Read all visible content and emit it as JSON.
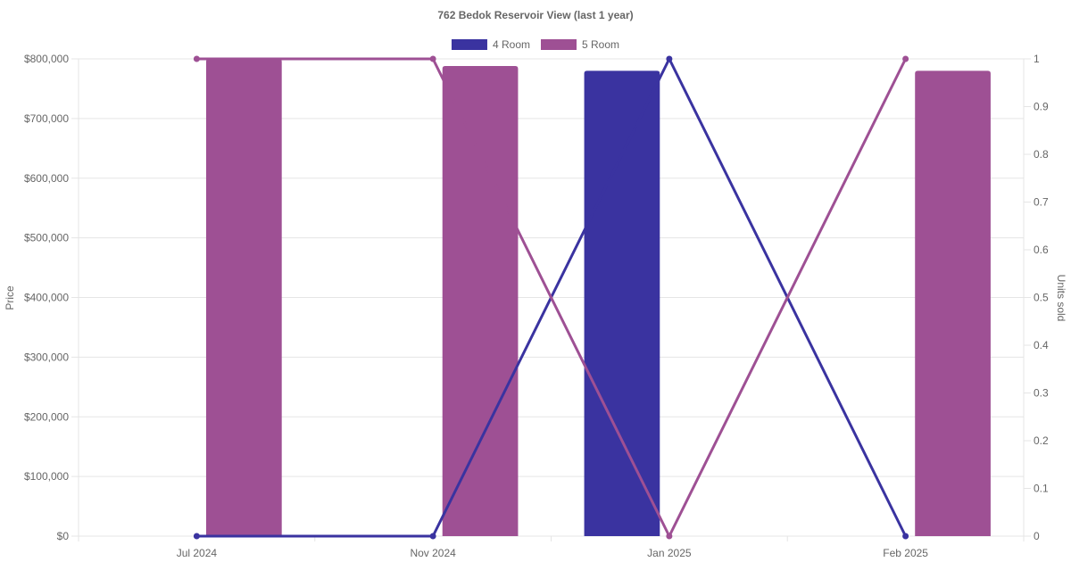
{
  "chart_data": {
    "type": "bar",
    "title": "762 Bedok Reservoir View (last 1 year)",
    "categories": [
      "Jul 2024",
      "Nov 2024",
      "Jan 2025",
      "Feb 2025"
    ],
    "y_left": {
      "label": "Price",
      "range": [
        0,
        800000
      ],
      "ticks": [
        "$0",
        "$100,000",
        "$200,000",
        "$300,000",
        "$400,000",
        "$500,000",
        "$600,000",
        "$700,000",
        "$800,000"
      ],
      "tick_values": [
        0,
        100000,
        200000,
        300000,
        400000,
        500000,
        600000,
        700000,
        800000
      ]
    },
    "y_right": {
      "label": "Units sold",
      "range": [
        0,
        1
      ],
      "ticks": [
        "0",
        "0.1",
        "0.2",
        "0.3",
        "0.4",
        "0.5",
        "0.6",
        "0.7",
        "0.8",
        "0.9",
        "1"
      ],
      "tick_values": [
        0,
        0.1,
        0.2,
        0.3,
        0.4,
        0.5,
        0.6,
        0.7,
        0.8,
        0.9,
        1
      ]
    },
    "grid": true,
    "legend_position": "top-center",
    "series": [
      {
        "name": "4 Room",
        "color": "#3a33a0",
        "price": [
          null,
          null,
          780000,
          null
        ],
        "units_sold": [
          0,
          0,
          1,
          0
        ]
      },
      {
        "name": "5 Room",
        "color": "#9e5094",
        "price": [
          800000,
          788000,
          null,
          780000
        ],
        "units_sold": [
          1,
          1,
          0,
          1
        ]
      }
    ]
  }
}
